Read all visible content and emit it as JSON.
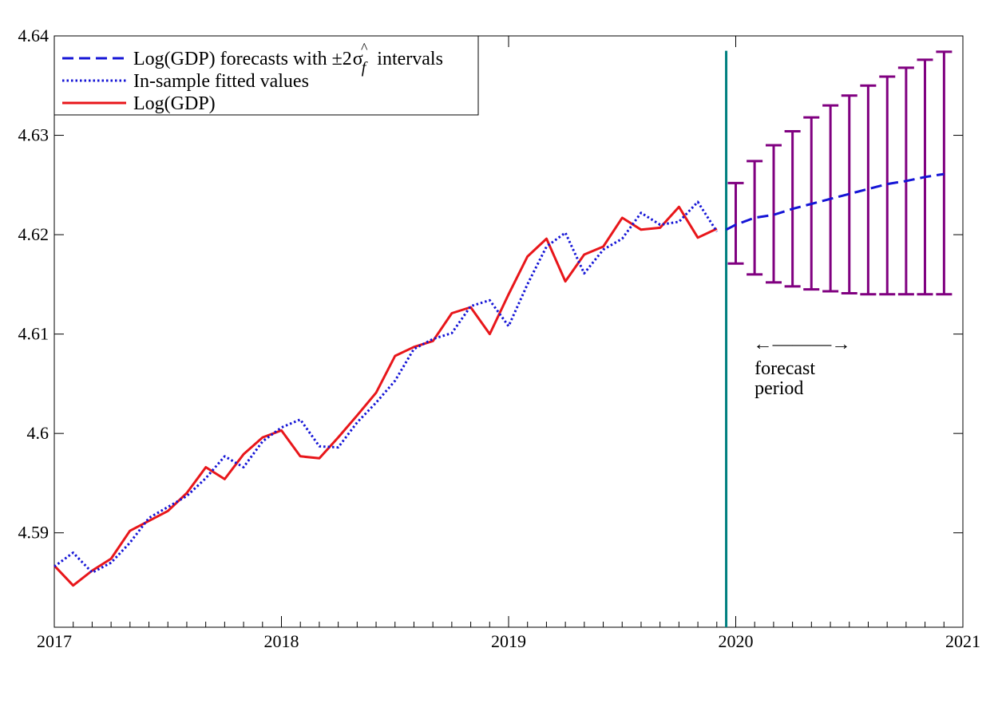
{
  "chart_data": {
    "type": "line",
    "title": "",
    "xlabel": "",
    "ylabel": "",
    "xlim": [
      2017,
      2021
    ],
    "ylim": [
      4.5805,
      4.64
    ],
    "x_ticks": [
      2017,
      2018,
      2019,
      2020,
      2021
    ],
    "x_tick_labels": [
      "2017",
      "2018",
      "2019",
      "2020",
      "2021"
    ],
    "y_ticks": [
      4.59,
      4.6,
      4.61,
      4.62,
      4.63,
      4.64
    ],
    "y_tick_labels": [
      "4.59",
      "4.6",
      "4.61",
      "4.62",
      "4.63",
      "4.64"
    ],
    "minor_x_ticks_per_year": 12,
    "grid": false,
    "legend": {
      "placement": "top-left",
      "entries": [
        {
          "label": "Log(GDP) forecasts with ±2",
          "sigma": "σ",
          "hat": "^",
          "sub": "f",
          "suffix": "intervals",
          "series": "forecast"
        },
        {
          "label": "In-sample fitted values",
          "series": "fitted"
        },
        {
          "label": "Log(GDP)",
          "series": "actual"
        }
      ]
    },
    "annotation": {
      "arrow": "←———→",
      "line1": "forecast",
      "line2": "period",
      "x_start": 2020.083,
      "x_end": 2020.5,
      "y_arrow": 4.609,
      "y_text1": 4.6066,
      "y_text2": 4.6046
    },
    "vertical_line": {
      "x": 2019.958,
      "y_from": 4.5805,
      "y_to": 4.6385,
      "color": "#008080"
    },
    "series": [
      {
        "name": "Log(GDP)",
        "key": "actual",
        "color": "#e8161a",
        "style": "solid",
        "x": [
          2017.0,
          2017.083,
          2017.167,
          2017.25,
          2017.333,
          2017.417,
          2017.5,
          2017.583,
          2017.667,
          2017.75,
          2017.833,
          2017.917,
          2018.0,
          2018.083,
          2018.167,
          2018.25,
          2018.333,
          2018.417,
          2018.5,
          2018.583,
          2018.667,
          2018.75,
          2018.833,
          2018.917,
          2019.0,
          2019.083,
          2019.167,
          2019.25,
          2019.333,
          2019.417,
          2019.5,
          2019.583,
          2019.667,
          2019.75,
          2019.833,
          2019.917
        ],
        "values": [
          4.5867,
          4.5847,
          4.5862,
          4.5874,
          4.5902,
          4.5912,
          4.5922,
          4.594,
          4.5966,
          4.5954,
          4.5979,
          4.5996,
          4.6003,
          4.5977,
          4.5975,
          4.5996,
          4.6018,
          4.6041,
          4.6078,
          4.6087,
          4.6093,
          4.6121,
          4.6127,
          4.61,
          4.614,
          4.6178,
          4.6196,
          4.6153,
          4.618,
          4.6188,
          4.6217,
          4.6205,
          4.6207,
          4.6228,
          4.6197,
          4.6206
        ]
      },
      {
        "name": "In-sample fitted values",
        "key": "fitted",
        "color": "#1515d6",
        "style": "dotted",
        "x": [
          2017.0,
          2017.083,
          2017.167,
          2017.25,
          2017.333,
          2017.417,
          2017.5,
          2017.583,
          2017.667,
          2017.75,
          2017.833,
          2017.917,
          2018.0,
          2018.083,
          2018.167,
          2018.25,
          2018.333,
          2018.417,
          2018.5,
          2018.583,
          2018.667,
          2018.75,
          2018.833,
          2018.917,
          2019.0,
          2019.083,
          2019.167,
          2019.25,
          2019.333,
          2019.417,
          2019.5,
          2019.583,
          2019.667,
          2019.75,
          2019.833,
          2019.917
        ],
        "values": [
          4.5866,
          4.588,
          4.586,
          4.587,
          4.589,
          4.5915,
          4.5926,
          4.5937,
          4.5955,
          4.5977,
          4.5966,
          4.5992,
          4.6006,
          4.6014,
          4.5987,
          4.5986,
          4.6011,
          4.6031,
          4.6053,
          4.6085,
          4.6095,
          4.6101,
          4.6128,
          4.6134,
          4.6108,
          4.615,
          4.6188,
          4.6202,
          4.6161,
          4.6185,
          4.6196,
          4.6222,
          4.621,
          4.6213,
          4.6233,
          4.6203
        ]
      },
      {
        "name": "Log(GDP) forecasts with ±2σf intervals",
        "key": "forecast",
        "color": "#1515d6",
        "style": "dashed",
        "x": [
          2019.958,
          2020.0,
          2020.083,
          2020.167,
          2020.25,
          2020.333,
          2020.417,
          2020.5,
          2020.583,
          2020.667,
          2020.75,
          2020.833,
          2020.917
        ],
        "values": [
          4.6205,
          4.621,
          4.6217,
          4.622,
          4.6226,
          4.6231,
          4.6236,
          4.6241,
          4.6246,
          4.6251,
          4.6254,
          4.6258,
          4.6261
        ],
        "intervals_color": "#800080",
        "intervals": [
          {
            "x": 2020.0,
            "lo": 4.6171,
            "hi": 4.6252
          },
          {
            "x": 2020.083,
            "lo": 4.616,
            "hi": 4.6274
          },
          {
            "x": 2020.167,
            "lo": 4.6152,
            "hi": 4.629
          },
          {
            "x": 2020.25,
            "lo": 4.6148,
            "hi": 4.6304
          },
          {
            "x": 2020.333,
            "lo": 4.6145,
            "hi": 4.6318
          },
          {
            "x": 2020.417,
            "lo": 4.6143,
            "hi": 4.633
          },
          {
            "x": 2020.5,
            "lo": 4.6141,
            "hi": 4.634
          },
          {
            "x": 2020.583,
            "lo": 4.614,
            "hi": 4.635
          },
          {
            "x": 2020.667,
            "lo": 4.614,
            "hi": 4.6359
          },
          {
            "x": 2020.75,
            "lo": 4.614,
            "hi": 4.6368
          },
          {
            "x": 2020.833,
            "lo": 4.614,
            "hi": 4.6376
          },
          {
            "x": 2020.917,
            "lo": 4.614,
            "hi": 4.6384
          }
        ]
      }
    ]
  }
}
